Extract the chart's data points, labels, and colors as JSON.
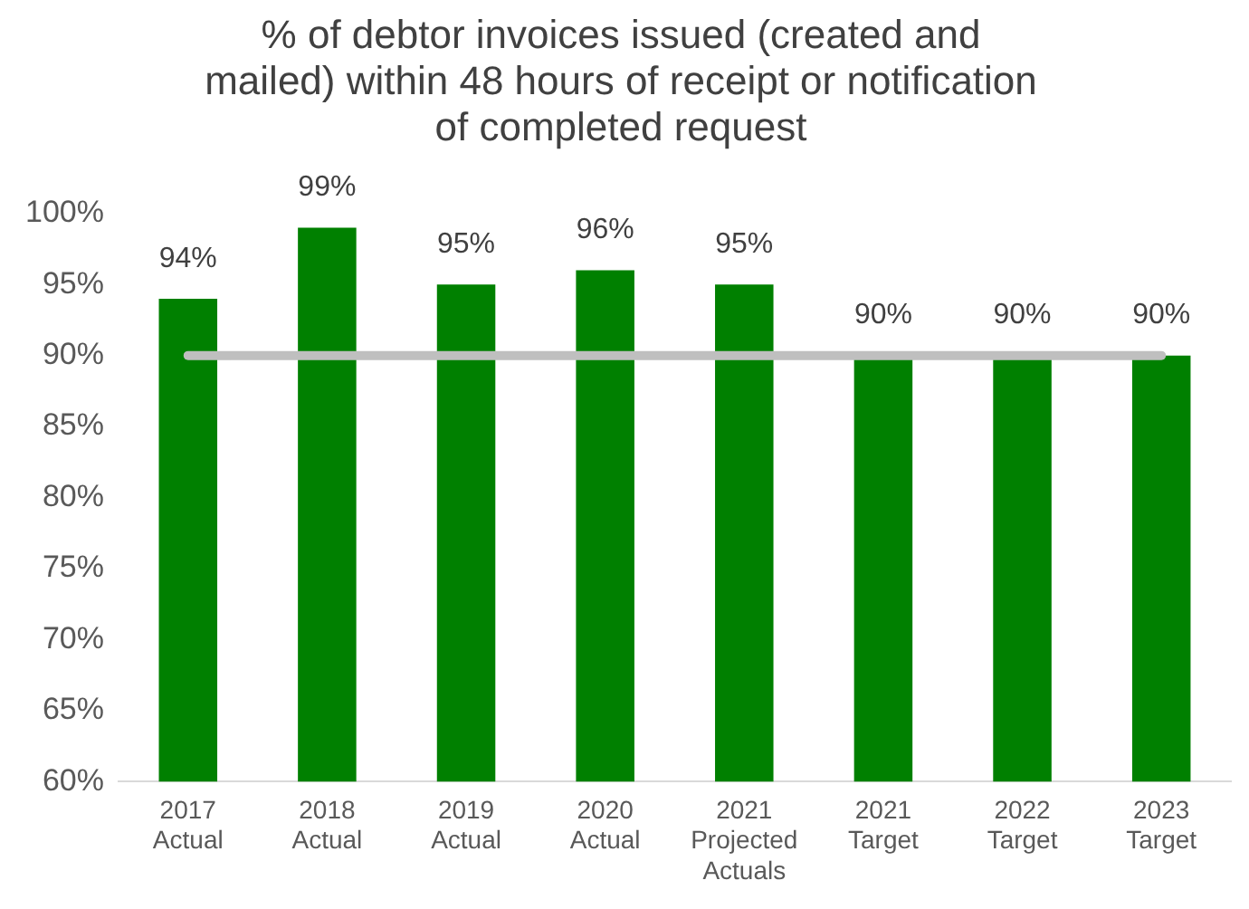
{
  "chart_data": {
    "type": "bar",
    "title": "% of debtor invoices issued (created and mailed) within 48 hours of receipt or notification of completed request",
    "categories": [
      "2017 Actual",
      "2018 Actual",
      "2019 Actual",
      "2020 Actual",
      "2021 Projected Actuals",
      "2021 Target",
      "2022 Target",
      "2023 Target"
    ],
    "values": [
      94,
      99,
      95,
      96,
      95,
      90,
      90,
      90
    ],
    "value_labels": [
      "94%",
      "99%",
      "95%",
      "96%",
      "95%",
      "90%",
      "90%",
      "90%"
    ],
    "color": "#008000",
    "ylim": [
      60,
      100
    ],
    "yticks": [
      {
        "value": 60,
        "label": "60%"
      },
      {
        "value": 65,
        "label": "65%"
      },
      {
        "value": 70,
        "label": "70%"
      },
      {
        "value": 75,
        "label": "75%"
      },
      {
        "value": 80,
        "label": "80%"
      },
      {
        "value": 85,
        "label": "85%"
      },
      {
        "value": 90,
        "label": "90%"
      },
      {
        "value": 95,
        "label": "95%"
      },
      {
        "value": 100,
        "label": "100%"
      }
    ],
    "ref_lines": [
      {
        "axis": "y",
        "value": 90,
        "color": "#bfbfbf"
      }
    ],
    "grid": false,
    "legend": false
  }
}
